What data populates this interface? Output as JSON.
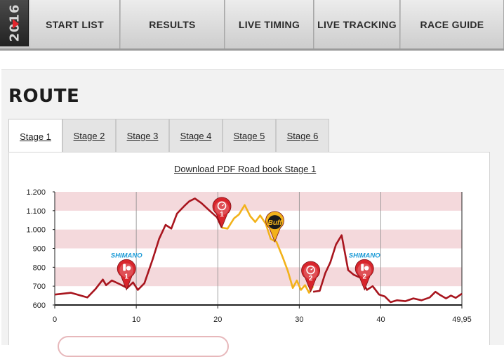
{
  "nav": {
    "year": "2016",
    "items": [
      {
        "label": "START LIST"
      },
      {
        "label": "RESULTS"
      },
      {
        "label": "LIVE TIMING"
      },
      {
        "label": "LIVE TRACKING"
      },
      {
        "label": "RACE GUIDE"
      }
    ]
  },
  "page": {
    "title": "ROUTE",
    "tabs": [
      {
        "label": "Stage 1",
        "active": true
      },
      {
        "label": "Stage 2"
      },
      {
        "label": "Stage 3"
      },
      {
        "label": "Stage 4"
      },
      {
        "label": "Stage 5"
      },
      {
        "label": "Stage 6"
      }
    ],
    "download_label": "Download PDF Road book Stage 1"
  },
  "colors": {
    "profile_red": "#a8151e",
    "profile_yellow": "#f2b21a",
    "band_pink": "#f4d9dc",
    "marker_red": "#d8252c",
    "marker_yellow": "#f2b21a",
    "shimano_blue": "#1a9ad6"
  },
  "chart_data": {
    "type": "line",
    "xlim": [
      0,
      49.95
    ],
    "ylim": [
      600,
      1200
    ],
    "x_tick_labels": [
      "0",
      "10",
      "20",
      "30",
      "40",
      "49,95"
    ],
    "x_ticks": [
      0,
      10,
      20,
      30,
      40,
      49.95
    ],
    "y_tick_labels": [
      "1.200",
      "1.100",
      "1.000",
      "900",
      "800",
      "700",
      "600"
    ],
    "y_ticks": [
      1200,
      1100,
      1000,
      900,
      800,
      700,
      600
    ],
    "series": [
      {
        "color": "#a8151e",
        "x": [
          0,
          2,
          4,
          5,
          5.9,
          6.3,
          7,
          8,
          8.9,
          9.6,
          10.2,
          11,
          12,
          12.8,
          13.6,
          14.3,
          15,
          15.9,
          16.5,
          17.2,
          18,
          19,
          19.9,
          20.5
        ],
        "y": [
          655,
          665,
          640,
          685,
          735,
          705,
          730,
          710,
          690,
          720,
          680,
          715,
          840,
          950,
          1025,
          1005,
          1085,
          1125,
          1150,
          1165,
          1140,
          1100,
          1065,
          1010
        ]
      },
      {
        "color": "#f2b21a",
        "x": [
          20.5,
          21.2,
          22,
          22.6,
          23.3,
          24,
          24.6,
          25.2,
          25.9,
          26.5,
          27.2,
          28,
          28.6,
          29.2,
          29.7,
          30.2,
          30.7,
          31.2,
          31.7
        ],
        "y": [
          1010,
          1005,
          1060,
          1080,
          1130,
          1070,
          1040,
          1075,
          1030,
          950,
          935,
          850,
          780,
          690,
          730,
          680,
          705,
          665,
          700
        ]
      },
      {
        "color": "#a8151e",
        "x": [
          31.7,
          32.5,
          33.2,
          33.8,
          34.5,
          35.2,
          36,
          36.7,
          37.5,
          38.3,
          39,
          39.8,
          40.5,
          41.2,
          42,
          43,
          44,
          45,
          46,
          46.7,
          47.2,
          48,
          48.6,
          49.2,
          49.95
        ],
        "y": [
          670,
          675,
          770,
          825,
          920,
          970,
          785,
          760,
          745,
          680,
          700,
          655,
          645,
          615,
          625,
          620,
          635,
          625,
          640,
          670,
          655,
          635,
          650,
          638,
          660
        ]
      }
    ],
    "markers": [
      {
        "x": 8.8,
        "y": 680,
        "kind": "feed",
        "number": "1",
        "sponsor": "SHIMANO"
      },
      {
        "x": 20.5,
        "y": 1010,
        "kind": "timing",
        "number": "1"
      },
      {
        "x": 27.0,
        "y": 935,
        "kind": "buff",
        "text": "Buff"
      },
      {
        "x": 31.4,
        "y": 670,
        "kind": "timing",
        "number": "2"
      },
      {
        "x": 38.0,
        "y": 680,
        "kind": "feed",
        "number": "2",
        "sponsor": "SHIMANO"
      }
    ]
  }
}
